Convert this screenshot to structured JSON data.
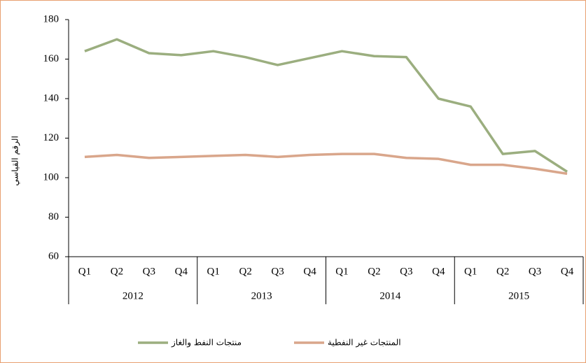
{
  "chart_data": {
    "type": "line",
    "y_label": "الرقم القياسي",
    "categories": [
      "Q1",
      "Q2",
      "Q3",
      "Q4",
      "Q1",
      "Q2",
      "Q3",
      "Q4",
      "Q1",
      "Q2",
      "Q3",
      "Q4",
      "Q1",
      "Q2",
      "Q3",
      "Q4"
    ],
    "x_groups": [
      "2012",
      "2013",
      "2014",
      "2015"
    ],
    "series": [
      {
        "name": "منتجات النفط والغاز",
        "color": "#9bae7f",
        "values": [
          164,
          170,
          163,
          162,
          164,
          161,
          157,
          160.5,
          164,
          161.5,
          161,
          140,
          136,
          112,
          113.5,
          103
        ]
      },
      {
        "name": "المنتجات غير النفطية",
        "color": "#d9a68b",
        "values": [
          110.5,
          111.5,
          110,
          110.5,
          111,
          111.5,
          110.5,
          111.5,
          112,
          112,
          110,
          109.5,
          106.5,
          106.5,
          104.5,
          102
        ]
      }
    ],
    "ylim": [
      60,
      180
    ],
    "yticks": [
      60,
      80,
      100,
      120,
      140,
      160,
      180
    ],
    "grid": false
  }
}
